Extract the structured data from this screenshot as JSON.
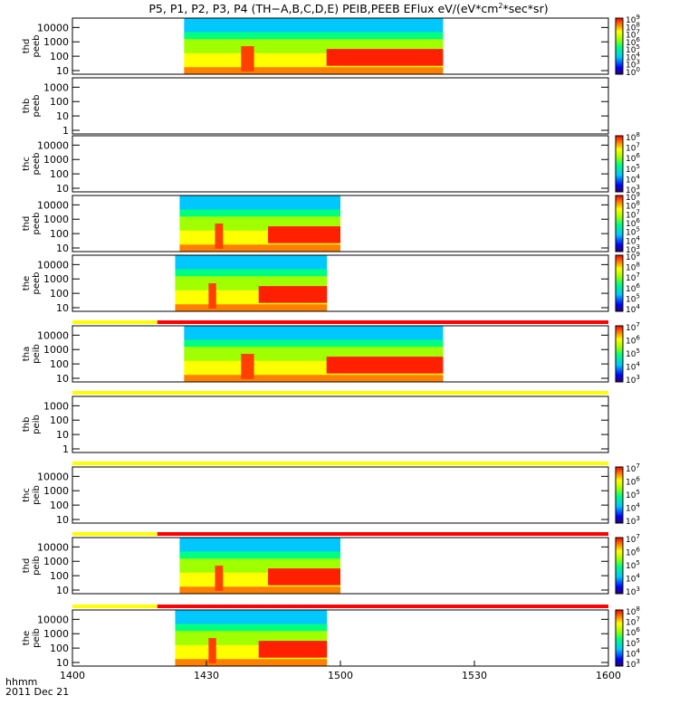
{
  "title": "P5, P1, P2, P3, P4 (TH−A,B,C,D,E) PEIB,PEEB EFlux eV/(eV*cm",
  "title_sup": "2",
  "title_tail": "*sec*sr)",
  "footer": {
    "xlabel": "hhmm",
    "date": "2011 Dec 21"
  },
  "colors": {
    "background": "#ffffff",
    "axis": "#000000",
    "flag_yellow": "#ffff00",
    "flag_red": "#ff0000"
  },
  "chart_data": {
    "type": "heatmap",
    "colormap": "rainbow (purple-blue-cyan-green-yellow-red)",
    "x_axis": {
      "ticks": [
        "1400",
        "1430",
        "1500",
        "1530",
        "1600"
      ],
      "range": [
        "14:00",
        "16:00"
      ]
    },
    "panels": [
      {
        "ylabel": [
          "thd",
          "peeb"
        ],
        "yscale": "log",
        "y_ticks": [
          "10",
          "100",
          "1000",
          "10000"
        ],
        "data_span": [
          "14:25",
          "15:23"
        ],
        "cb_ticks": [
          "10",
          "10",
          "10",
          "10",
          "10",
          "10",
          "10",
          "10"
        ],
        "cb_exps": [
          "0",
          "3",
          "4",
          "5",
          "6",
          "7",
          "8",
          "9"
        ]
      },
      {
        "ylabel": [
          "thb",
          "peeb"
        ],
        "yscale": "log",
        "y_ticks": [
          "1",
          "10",
          "100",
          "1000"
        ],
        "data_span": null
      },
      {
        "ylabel": [
          "thc",
          "peeb"
        ],
        "yscale": "log",
        "y_ticks": [
          "10",
          "100",
          "1000",
          "10000"
        ],
        "data_span": null,
        "cb_ticks": [
          "10",
          "10",
          "10",
          "10",
          "10",
          "10"
        ],
        "cb_exps": [
          "3",
          "4",
          "5",
          "6",
          "7",
          "8"
        ]
      },
      {
        "ylabel": [
          "thd",
          "peeb"
        ],
        "yscale": "log",
        "y_ticks": [
          "10",
          "100",
          "1000",
          "10000"
        ],
        "data_span": [
          "14:24",
          "15:00"
        ],
        "cb_ticks": [
          "10",
          "10",
          "10",
          "10",
          "10",
          "10",
          "10"
        ],
        "cb_exps": [
          "3",
          "4",
          "5",
          "6",
          "7",
          "8",
          "9"
        ]
      },
      {
        "ylabel": [
          "the",
          "peeb"
        ],
        "yscale": "log",
        "y_ticks": [
          "10",
          "100",
          "1000",
          "10000"
        ],
        "data_span": [
          "14:23",
          "14:57"
        ],
        "cb_ticks": [
          "10",
          "10",
          "10",
          "10",
          "10",
          "10"
        ],
        "cb_exps": [
          "4",
          "5",
          "6",
          "7",
          "8",
          "9"
        ]
      },
      {
        "ylabel": [
          "tha",
          "peib"
        ],
        "yscale": "log",
        "y_ticks": [
          "10",
          "100",
          "1000",
          "10000"
        ],
        "data_span": [
          "14:25",
          "15:23"
        ],
        "cb_ticks": [
          "10",
          "10",
          "10",
          "10",
          "10"
        ],
        "cb_exps": [
          "3",
          "4",
          "5",
          "6",
          "7"
        ],
        "flag": "yellow-red"
      },
      {
        "ylabel": [
          "thb",
          "peib"
        ],
        "yscale": "log",
        "y_ticks": [
          "1",
          "10",
          "100",
          "1000"
        ],
        "data_span": null,
        "flag": "yellow"
      },
      {
        "ylabel": [
          "thc",
          "peib"
        ],
        "yscale": "log",
        "y_ticks": [
          "10",
          "100",
          "1000",
          "10000"
        ],
        "data_span": null,
        "cb_ticks": [
          "10",
          "10",
          "10",
          "10",
          "10"
        ],
        "cb_exps": [
          "3",
          "4",
          "5",
          "6",
          "7"
        ],
        "flag": "yellow"
      },
      {
        "ylabel": [
          "thd",
          "peib"
        ],
        "yscale": "log",
        "y_ticks": [
          "10",
          "100",
          "1000",
          "10000"
        ],
        "data_span": [
          "14:24",
          "15:00"
        ],
        "cb_ticks": [
          "10",
          "10",
          "10",
          "10",
          "10"
        ],
        "cb_exps": [
          "3",
          "4",
          "5",
          "6",
          "7"
        ],
        "flag": "yellow-red"
      },
      {
        "ylabel": [
          "the",
          "peib"
        ],
        "yscale": "log",
        "y_ticks": [
          "10",
          "100",
          "1000",
          "10000"
        ],
        "data_span": [
          "14:23",
          "14:57"
        ],
        "cb_ticks": [
          "10",
          "10",
          "10",
          "10",
          "10",
          "10"
        ],
        "cb_exps": [
          "3",
          "4",
          "5",
          "6",
          "7",
          "8"
        ],
        "flag": "yellow-red"
      }
    ]
  }
}
